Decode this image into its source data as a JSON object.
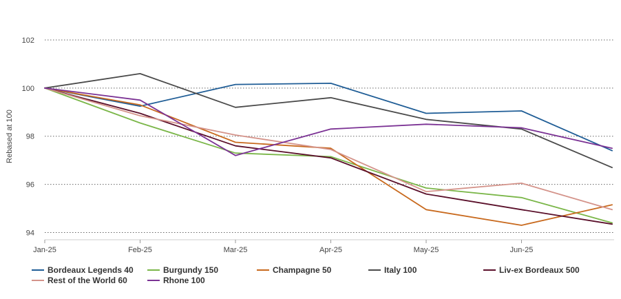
{
  "chart_data": {
    "type": "line",
    "title": "",
    "xlabel": "",
    "ylabel": "Rebased at 100",
    "ylim": [
      93.7,
      102.8
    ],
    "y_ticks": [
      94,
      96,
      98,
      100,
      102
    ],
    "x": [
      0,
      1,
      2,
      3,
      4,
      5,
      5.95
    ],
    "x_tick_labels": [
      "Jan-25",
      "Feb-25",
      "Mar-25",
      "Apr-25",
      "May-25",
      "Jun-25"
    ],
    "grid": true,
    "legend_position": "bottom",
    "series": [
      {
        "name": "Bordeaux Legends 40",
        "color": "#1f5d96",
        "values": [
          100,
          99.25,
          100.15,
          100.2,
          98.95,
          99.05,
          97.4
        ]
      },
      {
        "name": "Burgundy 150",
        "color": "#7ab648",
        "values": [
          100,
          98.55,
          97.3,
          97.15,
          95.85,
          95.45,
          94.4
        ]
      },
      {
        "name": "Champagne 50",
        "color": "#c8691d",
        "values": [
          100,
          99.3,
          97.75,
          97.5,
          94.95,
          94.3,
          95.15
        ]
      },
      {
        "name": "Italy 100",
        "color": "#4a4a4a",
        "values": [
          100,
          100.6,
          99.2,
          99.6,
          98.7,
          98.3,
          96.7
        ]
      },
      {
        "name": "Liv-ex Bordeaux 500",
        "color": "#5a0f2a",
        "values": [
          100,
          98.95,
          97.6,
          97.1,
          95.6,
          94.95,
          94.35
        ]
      },
      {
        "name": "Rest of the World 60",
        "color": "#d4938a",
        "values": [
          100,
          98.85,
          98.05,
          97.45,
          95.7,
          96.05,
          94.95
        ]
      },
      {
        "name": "Rhone 100",
        "color": "#7b3294",
        "values": [
          100,
          99.5,
          97.2,
          98.3,
          98.5,
          98.35,
          97.5
        ]
      }
    ]
  }
}
